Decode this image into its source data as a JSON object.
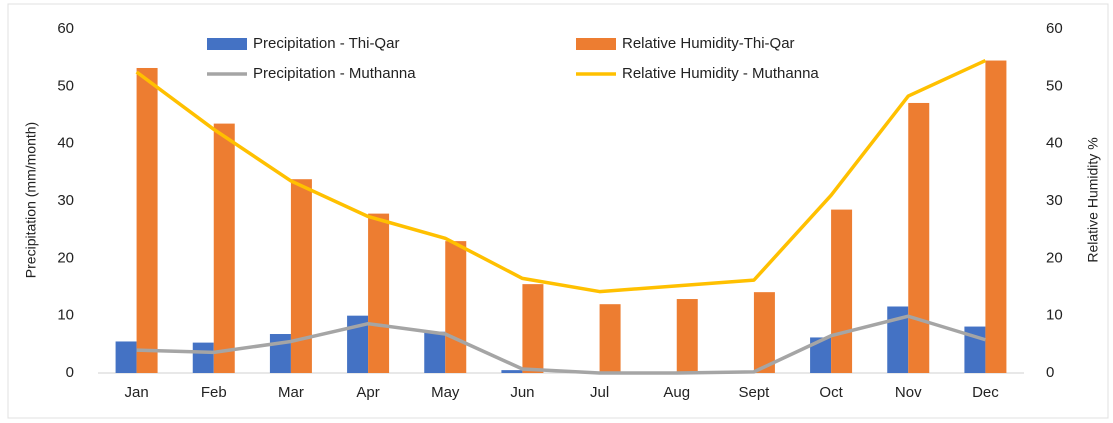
{
  "chart_data": {
    "type": "bar-line",
    "y_label": "Precipitation (mm/month)",
    "y2_label": "Relative Humidity %",
    "categories": [
      "Jan",
      "Feb",
      "Mar",
      "Apr",
      "May",
      "Jun",
      "Jul",
      "Aug",
      "Sept",
      "Oct",
      "Nov",
      "Dec"
    ],
    "ylim": [
      0,
      60
    ],
    "yticks": [
      0,
      10,
      20,
      30,
      40,
      50,
      60
    ],
    "y2lim": [
      0,
      60
    ],
    "y2ticks": [
      0,
      10,
      20,
      30,
      40,
      50,
      60
    ],
    "legend": "top",
    "series": [
      {
        "name": "Precipitation - Thi-Qar",
        "kind": "bar",
        "color": "#4472c4",
        "values": [
          5.5,
          5.3,
          6.8,
          10,
          7.2,
          0.5,
          0,
          0,
          0,
          6.2,
          11.6,
          8.1
        ]
      },
      {
        "name": "Relative Humidity-Thi-Qar",
        "kind": "bar",
        "axis": "y2",
        "color": "#ed7d31",
        "values": [
          53.2,
          43.5,
          33.8,
          27.8,
          23,
          15.5,
          12,
          12.9,
          14.1,
          28.5,
          47.1,
          54.5
        ]
      },
      {
        "name": "Precipitation - Muthanna",
        "kind": "line",
        "color": "#a5a5a5",
        "values": [
          4,
          3.6,
          5.5,
          8.6,
          6.8,
          0.7,
          0,
          0,
          0.2,
          6.5,
          9.9,
          5.8
        ]
      },
      {
        "name": "Relative Humidity - Muthanna",
        "kind": "line",
        "axis": "y2",
        "color": "#ffc000",
        "values": [
          52.5,
          42.5,
          33.5,
          27.3,
          23.5,
          16.5,
          14.2,
          15.2,
          16.2,
          31,
          48.3,
          54.5
        ]
      }
    ]
  }
}
